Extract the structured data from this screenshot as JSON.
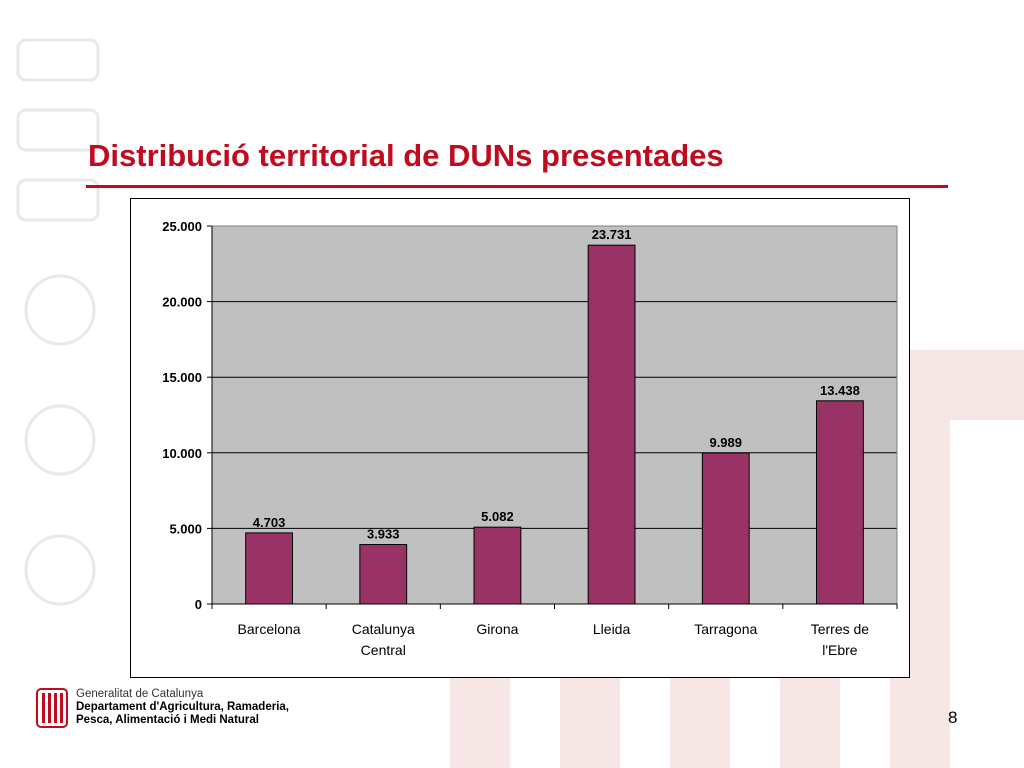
{
  "slide": {
    "title": "Distribució territorial de DUNs presentades",
    "page_number": "8"
  },
  "footer": {
    "org_line1": "Generalitat de Catalunya",
    "org_line2": "Departament d'Agricultura, Ramaderia,",
    "org_line3": "Pesca, Alimentació i Medi Natural"
  },
  "colors": {
    "title": "#c00a1e",
    "bar_fill": "#993366",
    "plot_area": "#c0c0c0"
  },
  "chart_data": {
    "type": "bar",
    "categories": [
      [
        "Barcelona"
      ],
      [
        "Catalunya",
        "Central"
      ],
      [
        "Girona"
      ],
      [
        "Lleida"
      ],
      [
        "Tarragona"
      ],
      [
        "Terres de",
        "l'Ebre"
      ]
    ],
    "values": [
      4703,
      3933,
      5082,
      23731,
      9989,
      13438
    ],
    "value_labels": [
      "4.703",
      "3.933",
      "5.082",
      "23.731",
      "9.989",
      "13.438"
    ],
    "yticks": [
      0,
      5000,
      10000,
      15000,
      20000,
      25000
    ],
    "ytick_labels": [
      "0",
      "5.000",
      "10.000",
      "15.000",
      "20.000",
      "25.000"
    ],
    "ylim": [
      0,
      25000
    ],
    "grid": true,
    "legend": "none"
  }
}
